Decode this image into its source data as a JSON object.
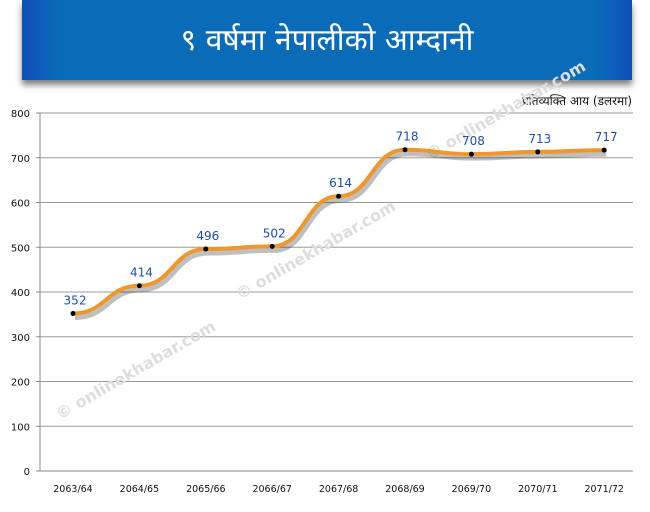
{
  "chart_data": {
    "type": "line",
    "title": "९ वर्षमा नेपालीको आम्दानी",
    "ylabel": "प्रतिव्यक्ति आय (डलरमा)",
    "xlabel": "",
    "categories": [
      "2063/64",
      "2064/65",
      "2065/66",
      "2066/67",
      "2067/68",
      "2068/69",
      "2069/70",
      "2070/71",
      "2071/72"
    ],
    "values": [
      352,
      414,
      496,
      502,
      614,
      718,
      708,
      713,
      717
    ],
    "ylim": [
      0,
      800
    ],
    "yticks": [
      0,
      100,
      200,
      300,
      400,
      500,
      600,
      700,
      800
    ],
    "grid": true,
    "line_color": "#f0962c",
    "label_color": "#1f4fa8",
    "banner_color": "#0a6cb8"
  },
  "watermark": "© onlinekhabar.com"
}
